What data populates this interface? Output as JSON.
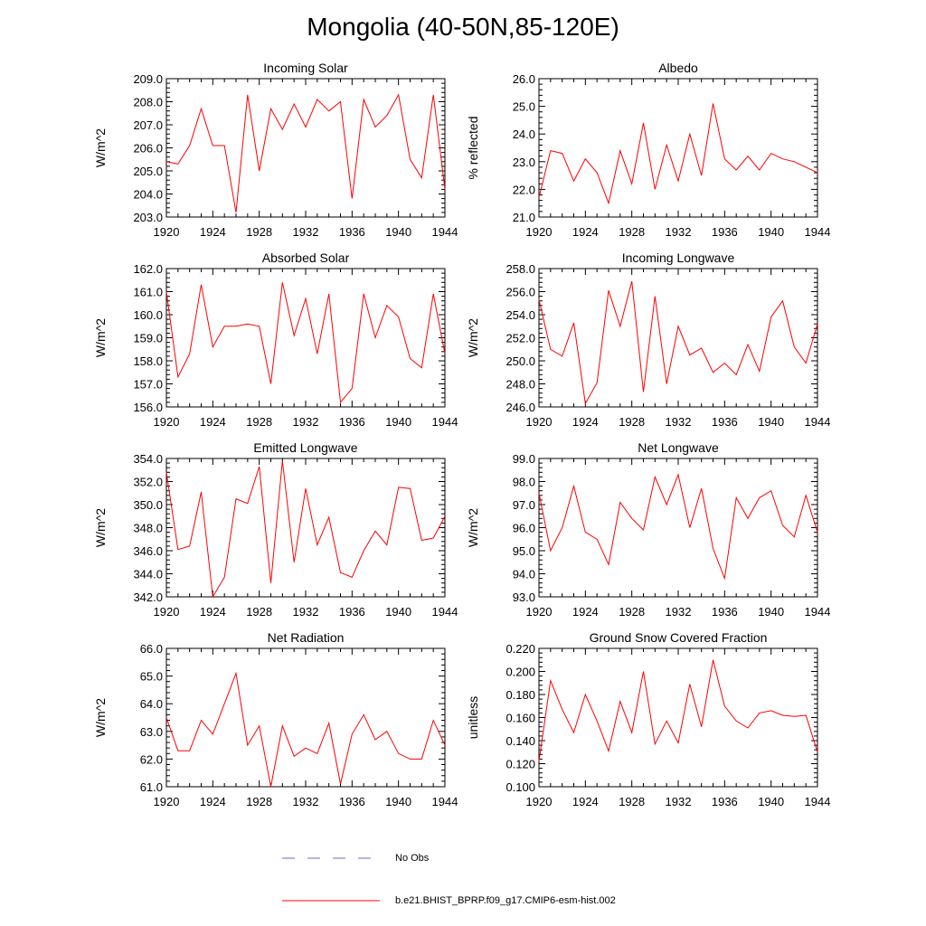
{
  "title": "Mongolia (40-50N,85-120E)",
  "legend": {
    "obs_label": "No Obs",
    "obs_color": "#6a6ad6",
    "model_label": "b.e21.BHIST_BPRP.f09_g17.CMIP6-esm-hist.002",
    "model_color": "#ff0000"
  },
  "x_ticks": [
    "1920",
    "1924",
    "1928",
    "1932",
    "1936",
    "1940",
    "1944"
  ],
  "chart_data": [
    {
      "type": "line",
      "title": "Incoming Solar",
      "ylabel": "W/m^2",
      "xlim": [
        1920,
        1944
      ],
      "ylim": [
        203,
        209
      ],
      "y_ticks": [
        "203.0",
        "204.0",
        "205.0",
        "206.0",
        "207.0",
        "208.0",
        "209.0"
      ],
      "series": [
        {
          "name": "b.e21.BHIST_BPRP.f09_g17.CMIP6-esm-hist.002",
          "x_start": 1920,
          "values": [
            205.4,
            205.3,
            206.1,
            207.7,
            206.1,
            206.1,
            203.2,
            208.3,
            205.0,
            207.7,
            206.8,
            207.9,
            206.9,
            208.1,
            207.6,
            208.0,
            203.8,
            208.1,
            206.9,
            207.4,
            208.3,
            205.5,
            204.7,
            208.3,
            204.2
          ]
        }
      ]
    },
    {
      "type": "line",
      "title": "Albedo",
      "ylabel": "% reflected",
      "xlim": [
        1920,
        1944
      ],
      "ylim": [
        21,
        26
      ],
      "y_ticks": [
        "21.0",
        "22.0",
        "23.0",
        "24.0",
        "25.0",
        "26.0"
      ],
      "series": [
        {
          "name": "b.e21.BHIST_BPRP.f09_g17.CMIP6-esm-hist.002",
          "x_start": 1920,
          "values": [
            21.7,
            23.4,
            23.3,
            22.3,
            23.1,
            22.6,
            21.5,
            23.4,
            22.2,
            24.4,
            22.0,
            23.6,
            22.3,
            24.0,
            22.5,
            25.1,
            23.1,
            22.7,
            23.2,
            22.7,
            23.3,
            23.1,
            23.0,
            22.8,
            22.6
          ]
        }
      ]
    },
    {
      "type": "line",
      "title": "Absorbed Solar",
      "ylabel": "W/m^2",
      "xlim": [
        1920,
        1944
      ],
      "ylim": [
        156,
        162
      ],
      "y_ticks": [
        "156.0",
        "157.0",
        "158.0",
        "159.0",
        "160.0",
        "161.0",
        "162.0"
      ],
      "series": [
        {
          "name": "b.e21.BHIST_BPRP.f09_g17.CMIP6-esm-hist.002",
          "x_start": 1920,
          "values": [
            161.0,
            157.3,
            158.3,
            161.3,
            158.6,
            159.5,
            159.5,
            159.6,
            159.5,
            157.0,
            161.4,
            159.1,
            160.7,
            158.3,
            160.9,
            156.2,
            156.8,
            160.9,
            159.0,
            160.4,
            159.9,
            158.1,
            157.7,
            160.9,
            158.3
          ]
        }
      ]
    },
    {
      "type": "line",
      "title": "Incoming Longwave",
      "ylabel": "W/m^2",
      "xlim": [
        1920,
        1944
      ],
      "ylim": [
        246,
        258
      ],
      "y_ticks": [
        "246.0",
        "248.0",
        "250.0",
        "252.0",
        "254.0",
        "256.0",
        "258.0"
      ],
      "series": [
        {
          "name": "b.e21.BHIST_BPRP.f09_g17.CMIP6-esm-hist.002",
          "x_start": 1920,
          "values": [
            255.3,
            251.0,
            250.4,
            253.3,
            246.3,
            248.1,
            256.1,
            253.0,
            256.9,
            247.3,
            255.6,
            248.0,
            253.0,
            250.5,
            251.1,
            249.0,
            249.8,
            248.8,
            251.4,
            249.1,
            253.8,
            255.2,
            251.2,
            249.8,
            253.2
          ]
        }
      ]
    },
    {
      "type": "line",
      "title": "Emitted Longwave",
      "ylabel": "W/m^2",
      "xlim": [
        1920,
        1944
      ],
      "ylim": [
        342,
        354
      ],
      "y_ticks": [
        "342.0",
        "344.0",
        "346.0",
        "348.0",
        "350.0",
        "352.0",
        "354.0"
      ],
      "series": [
        {
          "name": "b.e21.BHIST_BPRP.f09_g17.CMIP6-esm-hist.002",
          "x_start": 1920,
          "values": [
            352.8,
            346.1,
            346.4,
            351.1,
            342.0,
            343.7,
            350.5,
            350.1,
            353.3,
            343.2,
            353.8,
            345.0,
            351.4,
            346.5,
            348.9,
            344.1,
            343.7,
            346.0,
            347.7,
            346.5,
            351.5,
            351.4,
            346.9,
            347.1,
            349.0
          ]
        }
      ]
    },
    {
      "type": "line",
      "title": "Net Longwave",
      "ylabel": "W/m^2",
      "xlim": [
        1920,
        1944
      ],
      "ylim": [
        93,
        99
      ],
      "y_ticks": [
        "93.0",
        "94.0",
        "95.0",
        "96.0",
        "97.0",
        "98.0",
        "99.0"
      ],
      "series": [
        {
          "name": "b.e21.BHIST_BPRP.f09_g17.CMIP6-esm-hist.002",
          "x_start": 1920,
          "values": [
            97.5,
            95.0,
            96.0,
            97.8,
            95.8,
            95.5,
            94.4,
            97.1,
            96.4,
            95.9,
            98.2,
            97.0,
            98.3,
            96.0,
            97.7,
            95.1,
            93.8,
            97.3,
            96.4,
            97.3,
            97.6,
            96.1,
            95.6,
            97.4,
            95.8
          ]
        }
      ]
    },
    {
      "type": "line",
      "title": "Net Radiation",
      "ylabel": "W/m^2",
      "xlim": [
        1920,
        1944
      ],
      "ylim": [
        61,
        66
      ],
      "y_ticks": [
        "61.0",
        "62.0",
        "63.0",
        "64.0",
        "65.0",
        "66.0"
      ],
      "series": [
        {
          "name": "b.e21.BHIST_BPRP.f09_g17.CMIP6-esm-hist.002",
          "x_start": 1920,
          "values": [
            63.5,
            62.3,
            62.3,
            63.4,
            62.9,
            64.0,
            65.1,
            62.5,
            63.2,
            61.0,
            63.2,
            62.1,
            62.4,
            62.2,
            63.3,
            61.1,
            62.9,
            63.6,
            62.7,
            63.0,
            62.2,
            62.0,
            62.0,
            63.4,
            62.5
          ]
        }
      ]
    },
    {
      "type": "line",
      "title": "Ground Snow Covered Fraction",
      "ylabel": "unitless",
      "xlim": [
        1920,
        1944
      ],
      "ylim": [
        0.1,
        0.22
      ],
      "y_ticks": [
        "0.100",
        "0.120",
        "0.140",
        "0.160",
        "0.180",
        "0.200",
        "0.220"
      ],
      "series": [
        {
          "name": "b.e21.BHIST_BPRP.f09_g17.CMIP6-esm-hist.002",
          "x_start": 1920,
          "values": [
            0.122,
            0.192,
            0.167,
            0.147,
            0.18,
            0.157,
            0.131,
            0.174,
            0.147,
            0.2,
            0.137,
            0.157,
            0.138,
            0.189,
            0.152,
            0.21,
            0.17,
            0.157,
            0.151,
            0.164,
            0.166,
            0.162,
            0.161,
            0.162,
            0.13
          ]
        }
      ]
    }
  ]
}
